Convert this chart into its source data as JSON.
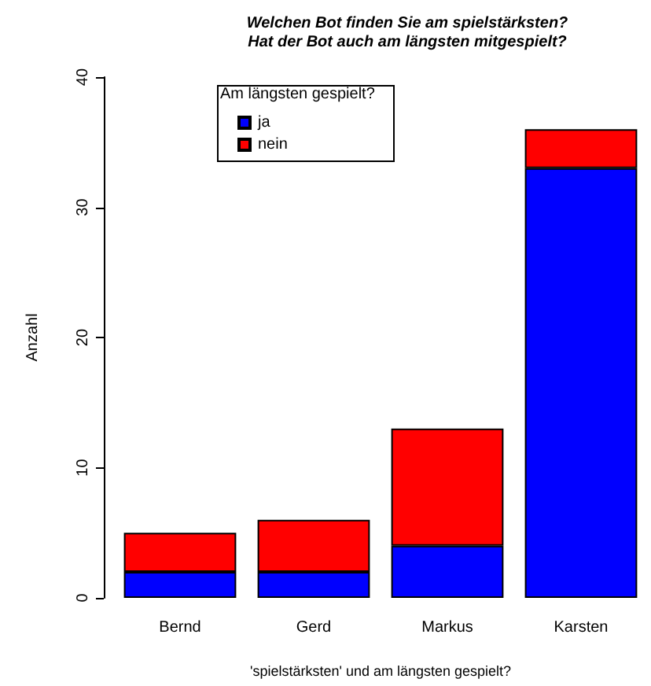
{
  "chart_data": {
    "type": "bar",
    "title": "Welchen Bot finden Sie am spielstärksten?\nHat der Bot auch am längsten mitgespielt?",
    "xlabel": "'spielstärksten' und am längsten gespielt?",
    "ylabel": "Anzahl",
    "legend_title": "Am längsten gespielt?",
    "categories": [
      "Bernd",
      "Gerd",
      "Markus",
      "Karsten"
    ],
    "stacked": true,
    "series": [
      {
        "name": "ja",
        "color": "#0000ff",
        "values": [
          2,
          2,
          4,
          33
        ]
      },
      {
        "name": "nein",
        "color": "#ff0000",
        "values": [
          3,
          4,
          9,
          3
        ]
      }
    ],
    "ylim": [
      0,
      40
    ],
    "yticks": [
      0,
      10,
      20,
      30,
      40
    ],
    "grid": false,
    "legend": "top left"
  }
}
